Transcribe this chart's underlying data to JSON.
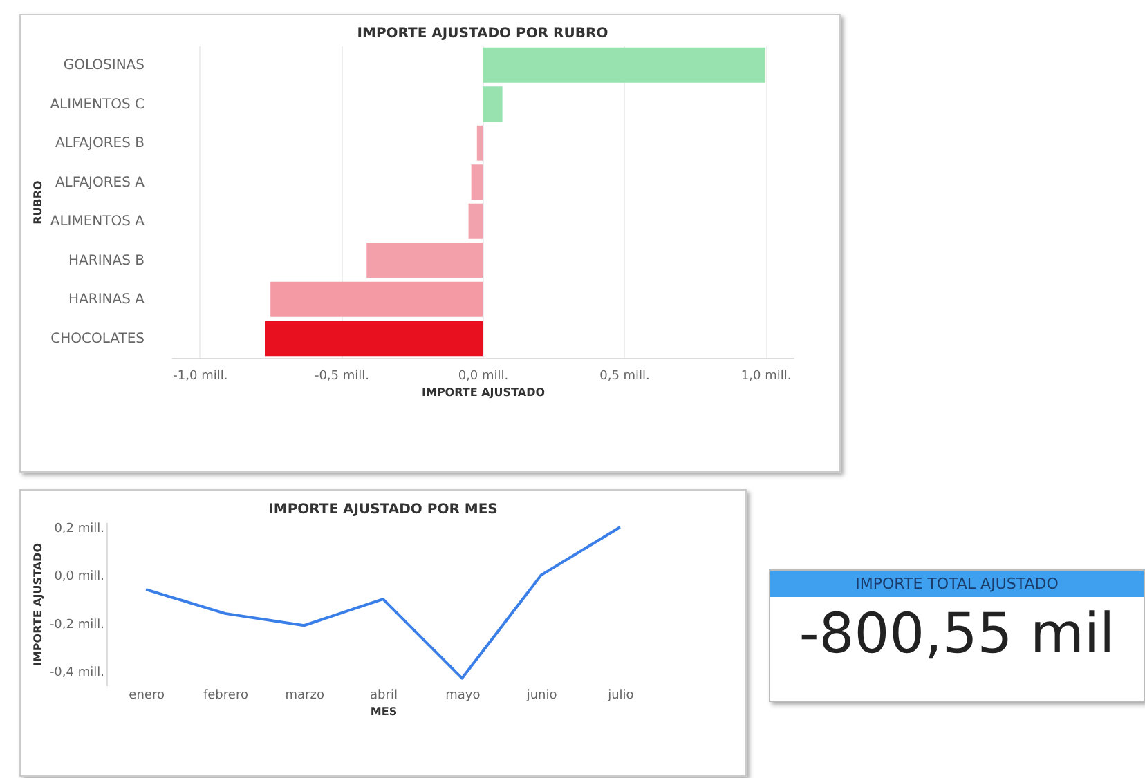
{
  "chart_data": [
    {
      "type": "bar",
      "orientation": "horizontal",
      "title": "IMPORTE AJUSTADO POR RUBRO",
      "xlabel": "IMPORTE AJUSTADO",
      "ylabel": "RUBRO",
      "categories": [
        "GOLOSINAS",
        "ALIMENTOS C",
        "ALFAJORES B",
        "ALFAJORES A",
        "ALIMENTOS A",
        "HARINAS B",
        "HARINAS A",
        "CHOCOLATES"
      ],
      "values": [
        1.0,
        0.07,
        -0.02,
        -0.04,
        -0.05,
        -0.41,
        -0.75,
        -0.77
      ],
      "colors": [
        "#98e2b0",
        "#98e2b0",
        "#f2a2ac",
        "#f2a2ac",
        "#f2a2ac",
        "#f4a0aa",
        "#f49aa4",
        "#e8101e"
      ],
      "xlim": [
        -1.1,
        1.1
      ],
      "xticks": [
        {
          "value": -1,
          "label": "-1,0 mill."
        },
        {
          "value": -0.5,
          "label": "-0,5 mill."
        },
        {
          "value": 0,
          "label": "0,0 mill."
        },
        {
          "value": 0.5,
          "label": "0,5 mill."
        },
        {
          "value": 1,
          "label": "1,0 mill."
        }
      ],
      "grid": "x"
    },
    {
      "type": "line",
      "title": "IMPORTE AJUSTADO POR MES",
      "xlabel": "MES",
      "ylabel": "IMPORTE AJUSTADO",
      "categories": [
        "enero",
        "febrero",
        "marzo",
        "abril",
        "mayo",
        "junio",
        "julio"
      ],
      "series": [
        {
          "color": "#3a7ee8",
          "values": [
            -0.06,
            -0.16,
            -0.21,
            -0.1,
            -0.43,
            0.0,
            0.2
          ]
        }
      ],
      "ylim": [
        -0.46,
        0.22
      ],
      "yticks": [
        {
          "value": -0.4,
          "label": "-0,4 mill."
        },
        {
          "value": -0.2,
          "label": "-0,2 mill."
        },
        {
          "value": 0,
          "label": "0,0 mill."
        },
        {
          "value": 0.2,
          "label": "0,2 mill."
        }
      ]
    },
    {
      "type": "other",
      "title": "IMPORTE TOTAL AJUSTADO",
      "annotations": [
        "-800,55 mil"
      ]
    }
  ]
}
